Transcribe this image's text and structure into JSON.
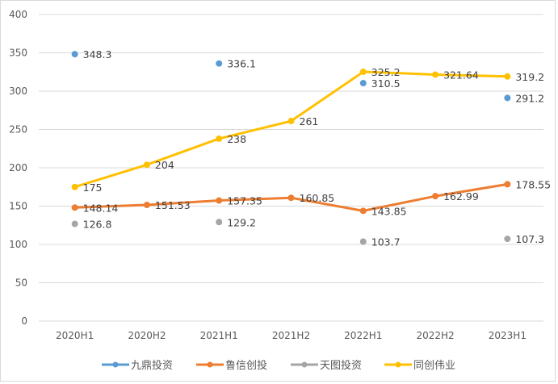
{
  "chart_data": {
    "type": "line",
    "title": "",
    "xlabel": "",
    "ylabel": "",
    "ylim": [
      0,
      400
    ],
    "yticks": [
      0,
      50,
      100,
      150,
      200,
      250,
      300,
      350,
      400
    ],
    "grid": true,
    "legend_position": "bottom",
    "categories": [
      "2020H1",
      "2020H2",
      "2021H1",
      "2021H2",
      "2022H1",
      "2022H2",
      "2023H1"
    ],
    "series": [
      {
        "name": "九鼎投资",
        "color": "#5B9BD5",
        "values": [
          348.3,
          null,
          336.1,
          null,
          310.5,
          null,
          291.2
        ],
        "labels": [
          "348.3",
          "",
          "336.1",
          "",
          "310.5",
          "",
          "291.2"
        ]
      },
      {
        "name": "鲁信创投",
        "color": "#ED7D31",
        "values": [
          148.14,
          151.53,
          157.35,
          160.85,
          143.85,
          162.99,
          178.55
        ],
        "labels": [
          "148.14",
          "151.53",
          "157.35",
          "160.85",
          "143.85",
          "162.99",
          "178.55"
        ]
      },
      {
        "name": "天图投资",
        "color": "#A5A5A5",
        "values": [
          126.8,
          null,
          129.2,
          null,
          103.7,
          null,
          107.3
        ],
        "labels": [
          "126.8",
          "",
          "129.2",
          "",
          "103.7",
          "",
          "107.3"
        ]
      },
      {
        "name": "同创伟业",
        "color": "#FFC000",
        "values": [
          175,
          204,
          238,
          261,
          325.2,
          321.64,
          319.2
        ],
        "labels": [
          "175",
          "204",
          "238",
          "261",
          "325.2",
          "321.64",
          "319.2"
        ]
      }
    ]
  }
}
